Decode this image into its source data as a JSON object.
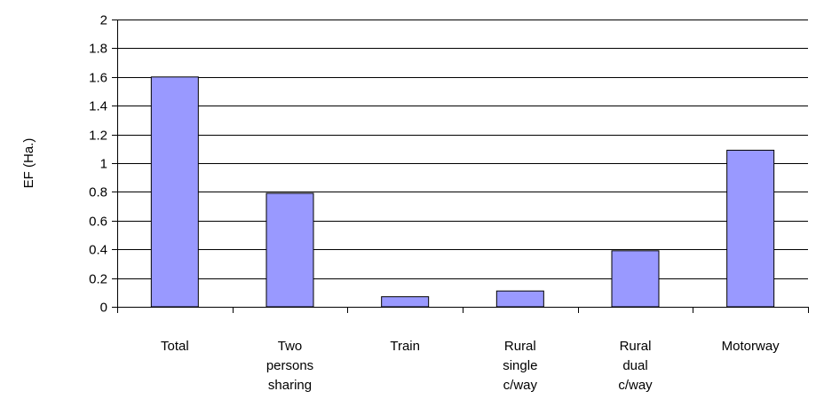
{
  "chart_data": {
    "type": "bar",
    "title": "",
    "xlabel": "",
    "ylabel": "EF (Ha.)",
    "ylim": [
      0,
      2
    ],
    "yticks": [
      "0",
      "0.2",
      "0.4",
      "0.6",
      "0.8",
      "1",
      "1.2",
      "1.4",
      "1.6",
      "1.8",
      "2"
    ],
    "grid": true,
    "legend": "none",
    "categories": [
      [
        "Total"
      ],
      [
        "Two",
        "persons",
        "sharing"
      ],
      [
        "Train"
      ],
      [
        "Rural",
        "single",
        "c/way"
      ],
      [
        "Rural",
        "dual",
        "c/way"
      ],
      [
        "Motorway"
      ]
    ],
    "values": [
      1.6,
      0.79,
      0.07,
      0.11,
      0.39,
      1.09
    ],
    "bar_color": "#9999ff",
    "bar_edge_color": "#000000"
  }
}
